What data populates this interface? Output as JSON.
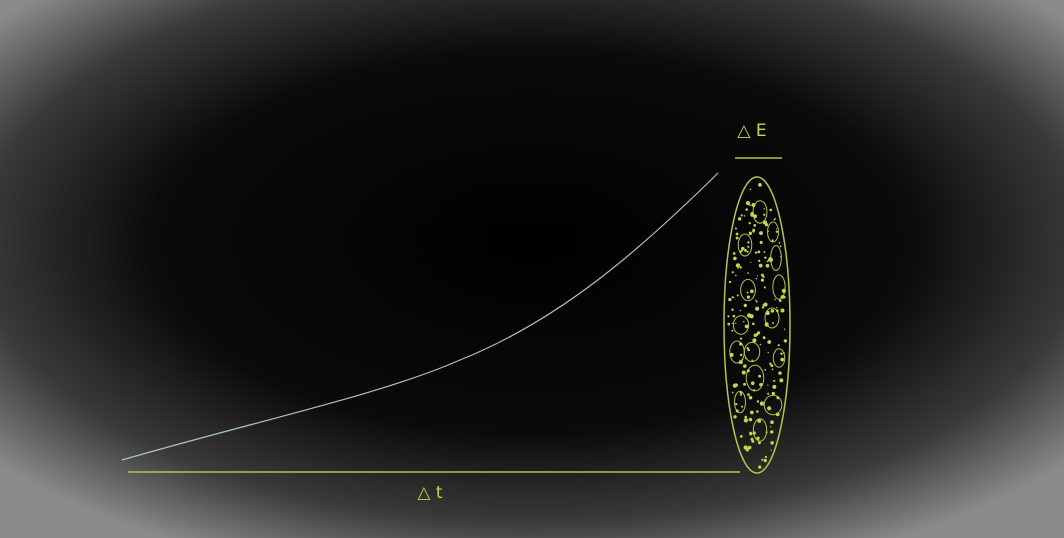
{
  "labels": {
    "energy": "△ E",
    "time": "△ t"
  }
}
